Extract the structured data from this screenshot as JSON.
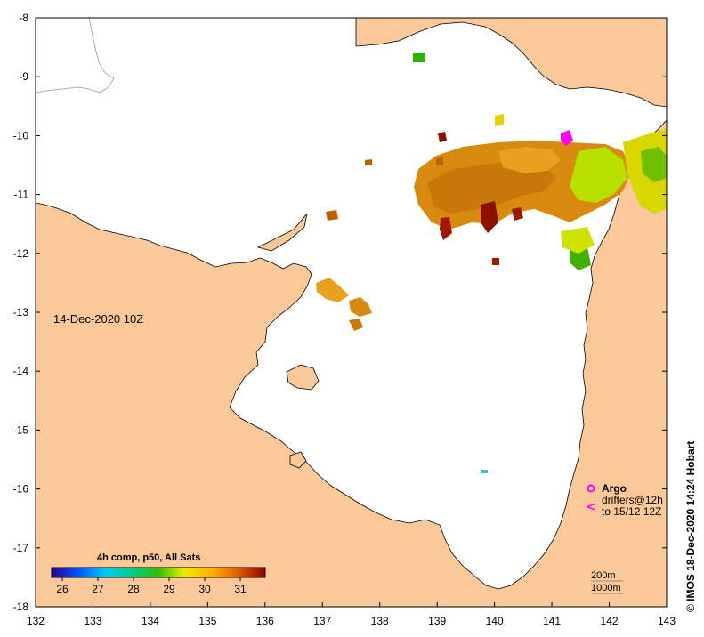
{
  "map": {
    "date_label": "14-Dec-2020 10Z",
    "credit": "© IMOS 18-Dec-2020 14:24 Hobart",
    "x_axis": {
      "ticks": [
        "132",
        "133",
        "134",
        "135",
        "136",
        "137",
        "138",
        "139",
        "140",
        "141",
        "142",
        "143"
      ],
      "range": [
        132,
        143
      ]
    },
    "y_axis": {
      "ticks": [
        "-8",
        "-9",
        "-10",
        "-11",
        "-12",
        "-13",
        "-14",
        "-15",
        "-16",
        "-17",
        "-18"
      ],
      "range": [
        -18,
        -8
      ]
    },
    "land_color": "#fbc899",
    "ocean_color": "#ffffff"
  },
  "colorbar": {
    "title": "4h comp, p50, All Sats",
    "ticks": [
      "26",
      "27",
      "28",
      "29",
      "30",
      "31"
    ],
    "range": [
      25.7,
      31.7
    ]
  },
  "legend": {
    "argo": "Argo",
    "drifters_line1": "drifters@12h",
    "drifters_line2": "to 15/12 12Z",
    "argo_color": "#ff00ff"
  },
  "isobaths": {
    "line1": "200m",
    "line2": "1000m"
  }
}
